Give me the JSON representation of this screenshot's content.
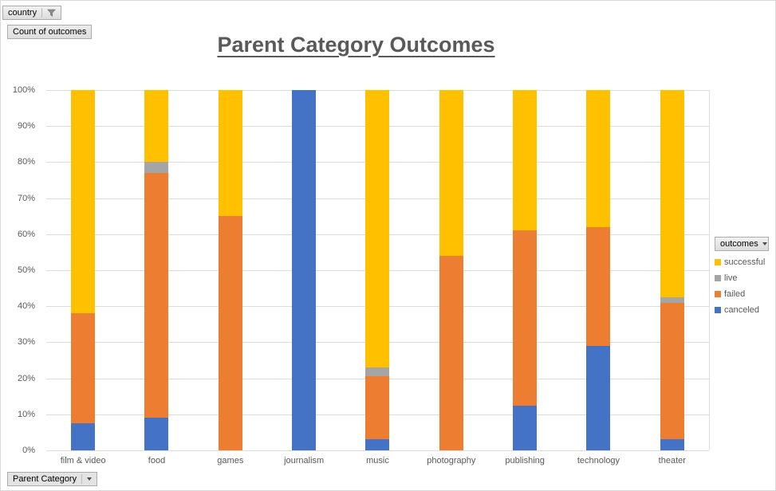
{
  "title": "Parent Category Outcomes",
  "field_buttons": {
    "filter_label": "country",
    "values_label": "Count of outcomes",
    "legend_label": "outcomes",
    "axis_label": "Parent Category"
  },
  "legend": {
    "items": [
      {
        "label": "successful",
        "color": "#FFC000"
      },
      {
        "label": "live",
        "color": "#A5A5A5"
      },
      {
        "label": "failed",
        "color": "#ED7D31"
      },
      {
        "label": "canceled",
        "color": "#4472C4"
      }
    ]
  },
  "chart_data": {
    "type": "bar",
    "subtype": "100%-stacked-column",
    "title": "Parent Category Outcomes",
    "categories": [
      "film & video",
      "food",
      "games",
      "journalism",
      "music",
      "photography",
      "publishing",
      "technology",
      "theater"
    ],
    "series": [
      {
        "name": "canceled",
        "color": "#4472C4",
        "values": [
          7.5,
          9,
          0,
          100,
          3,
          0,
          12.5,
          29,
          3
        ]
      },
      {
        "name": "failed",
        "color": "#ED7D31",
        "values": [
          30.5,
          68,
          65,
          0,
          17.5,
          54,
          48.5,
          33,
          38
        ]
      },
      {
        "name": "live",
        "color": "#A5A5A5",
        "values": [
          0,
          3,
          0,
          0,
          2.5,
          0,
          0,
          0,
          1.5
        ]
      },
      {
        "name": "successful",
        "color": "#FFC000",
        "values": [
          62,
          20,
          35,
          0,
          77,
          46,
          39,
          38,
          57.5
        ]
      }
    ],
    "y_ticks": [
      "100%",
      "90%",
      "80%",
      "70%",
      "60%",
      "50%",
      "40%",
      "30%",
      "20%",
      "10%",
      "0%"
    ],
    "ylim": [
      0,
      100
    ],
    "grid": true,
    "legend_position": "right",
    "xlabel": "Parent Category",
    "ylabel": "Count of outcomes"
  }
}
